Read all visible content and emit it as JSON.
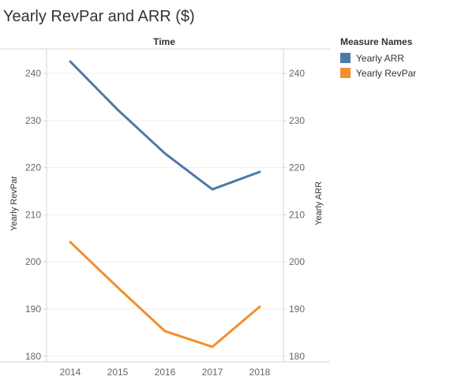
{
  "chart_data": {
    "type": "line",
    "title": "Yearly RevPar and ARR ($)",
    "column_header": "Time",
    "categories": [
      "2014",
      "2015",
      "2016",
      "2017",
      "2018"
    ],
    "ylabel_left": "Yearly RevPar",
    "ylabel_right": "Yearly ARR",
    "ylim": [
      178.8,
      245.2
    ],
    "y_ticks": [
      "180",
      "190",
      "200",
      "210",
      "220",
      "230",
      "240"
    ],
    "grid": true,
    "legend": {
      "title": "Measure Names",
      "placement": "right"
    },
    "series": [
      {
        "name": "Yearly ARR",
        "axis": "right",
        "color": "#4e79a7",
        "values": [
          242.5,
          232.3,
          223.0,
          215.4,
          219.1
        ]
      },
      {
        "name": "Yearly RevPar",
        "axis": "left",
        "color": "#f28e2b",
        "values": [
          204.2,
          194.6,
          185.3,
          182.0,
          190.5
        ]
      }
    ]
  }
}
